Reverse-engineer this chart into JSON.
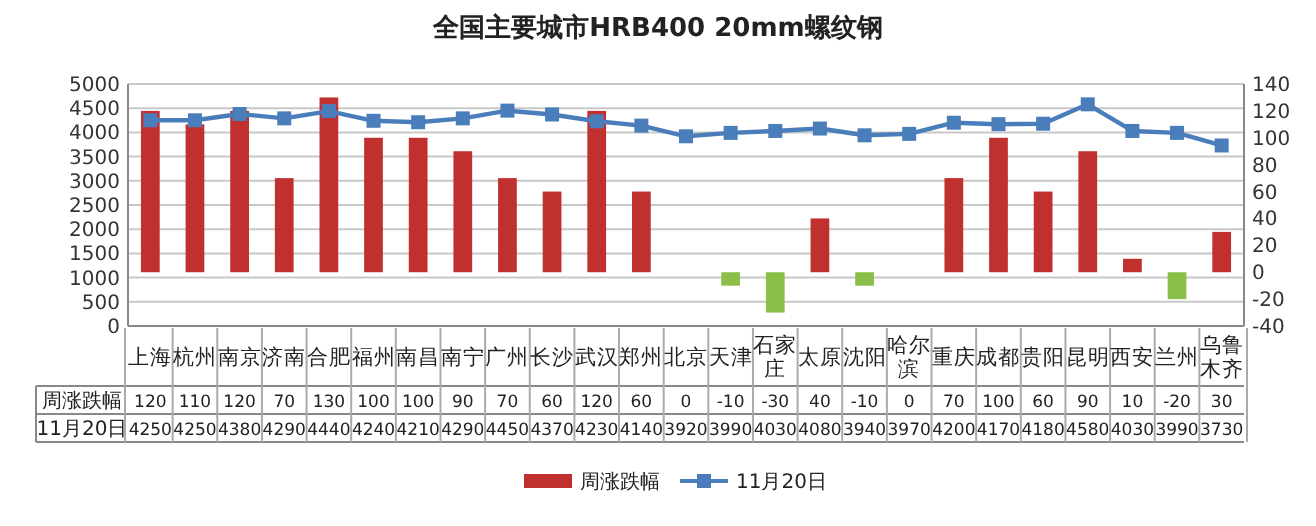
{
  "chart_data": {
    "type": "bar",
    "title": "全国主要城市HRB400 20mm螺纹钢",
    "categories": [
      "上海",
      "杭州",
      "南京",
      "济南",
      "合肥",
      "福州",
      "南昌",
      "南宁",
      "广州",
      "长沙",
      "武汉",
      "郑州",
      "北京",
      "天津",
      "石家庄",
      "太原",
      "沈阳",
      "哈尔滨",
      "重庆",
      "成都",
      "贵阳",
      "昆明",
      "西安",
      "兰州",
      "乌鲁木齐"
    ],
    "series": [
      {
        "name": "周涨跌幅",
        "axis": "y2",
        "color": "#c0302e",
        "colors": [
          "#c0302e",
          "#c0302e",
          "#c0302e",
          "#c0302e",
          "#c0302e",
          "#c0302e",
          "#c0302e",
          "#c0302e",
          "#c0302e",
          "#c0302e",
          "#c0302e",
          "#c0302e",
          "#c0302e",
          "#8cbf4a",
          "#8cbf4a",
          "#c0302e",
          "#8cbf4a",
          "#c0302e",
          "#c0302e",
          "#c0302e",
          "#c0302e",
          "#c0302e",
          "#c0302e",
          "#8cbf4a",
          "#c0302e"
        ],
        "values": [
          120,
          110,
          120,
          70,
          130,
          100,
          100,
          90,
          70,
          60,
          120,
          60,
          0,
          -10,
          -30,
          40,
          -10,
          0,
          70,
          100,
          60,
          90,
          10,
          -20,
          30
        ]
      },
      {
        "name": "11月20日",
        "type": "line",
        "color": "#4a7ebb",
        "values": [
          4250,
          4250,
          4380,
          4290,
          4440,
          4240,
          4210,
          4290,
          4450,
          4370,
          4230,
          4140,
          3920,
          3990,
          4030,
          4080,
          3940,
          3970,
          4200,
          4170,
          4180,
          4580,
          4030,
          3990,
          3730
        ]
      }
    ],
    "ylim": [
      0,
      5000
    ],
    "yticks": [
      0,
      500,
      1000,
      1500,
      2000,
      2500,
      3000,
      3500,
      4000,
      4500,
      5000
    ],
    "y2lim": [
      -40,
      140
    ],
    "y2ticks": [
      -40,
      -20,
      0,
      20,
      40,
      60,
      80,
      100,
      120,
      140
    ],
    "grid": "y",
    "legend": "bottom",
    "data_labels": true,
    "marker": "square"
  }
}
